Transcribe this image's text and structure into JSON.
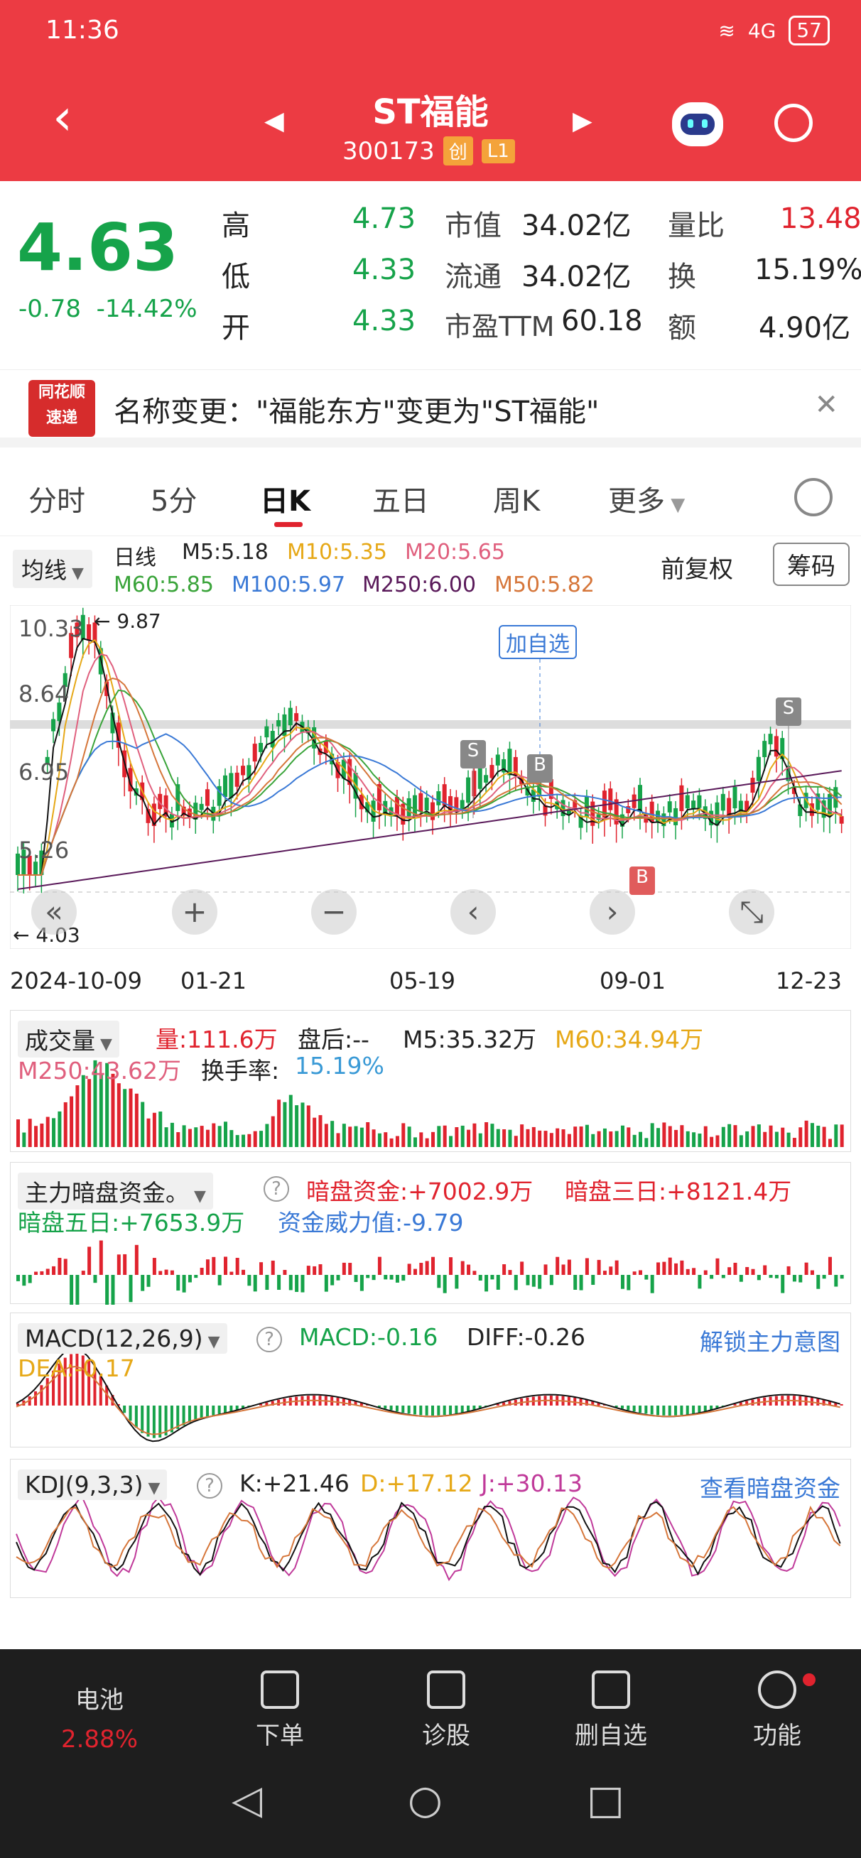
{
  "status": {
    "time": "11:36",
    "battery": "57",
    "net": "4G"
  },
  "header": {
    "title": "ST福能",
    "code": "300173",
    "badge1": "创",
    "badge2": "L1"
  },
  "quote": {
    "price": "4.63",
    "change": "-0.78",
    "pct": "-14.42%",
    "rows": [
      {
        "k1": "高",
        "v1": "4.73",
        "k2": "市值",
        "v2": "34.02亿",
        "k3": "量比",
        "v3": "13.48"
      },
      {
        "k1": "低",
        "v1": "4.33",
        "k2": "流通",
        "v2": "34.02亿",
        "k3": "换",
        "v3": "15.19%"
      },
      {
        "k1": "开",
        "v1": "4.33",
        "k2": "市盈TTM",
        "v2": "60.18",
        "k3": "额",
        "v3": "4.90亿"
      }
    ]
  },
  "news": {
    "logo1": "同花顺",
    "logo2": "速递",
    "text": "名称变更：\"福能东方\"变更为\"ST福能\""
  },
  "tabs": [
    "分时",
    "5分",
    "日K",
    "五日",
    "周K",
    "更多"
  ],
  "ma": {
    "select": "均线",
    "line": "日线",
    "m5": "M5:5.18",
    "m10": "M10:5.35",
    "m20": "M20:5.65",
    "m60": "M60:5.85",
    "m100": "M100:5.97",
    "m250": "M250:6.00",
    "m50": "M50:5.82",
    "fuquan": "前复权",
    "chouma": "筹码"
  },
  "colors": {
    "m5": "#111111",
    "m10": "#e6a817",
    "m20": "#e0607e",
    "m60": "#3aa43a",
    "m100": "#3a79d6",
    "m250": "#5a1a5a",
    "m50": "#d6763a",
    "up": "#e0232e",
    "down": "#16a34a"
  },
  "kchart": {
    "yticks": [
      "10.33",
      "8.64",
      "6.95",
      "5.26"
    ],
    "max_label": "9.87",
    "min_label": "4.03",
    "addlabel": "加自选",
    "sig_s": "S",
    "sig_b": "B",
    "xticks": [
      "2024-10-09",
      "01-21",
      "05-19",
      "09-01",
      "12-23"
    ]
  },
  "vol": {
    "select": "成交量",
    "v": "量:111.6万",
    "after": "盘后:--",
    "m5": "M5:35.32万",
    "m60": "M60:34.94万",
    "m250": "M250:43.62万",
    "turn": "换手率:",
    "turnv": "15.19%"
  },
  "dark": {
    "select": "主力暗盘资金。",
    "a": "暗盘资金:+7002.9万",
    "b": "暗盘三日:+8121.4万",
    "c": "暗盘五日:+7653.9万",
    "d": "资金威力值:-9.79"
  },
  "macd": {
    "select": "MACD(12,26,9)",
    "macd": "MACD:-0.16",
    "diff": "DIFF:-0.26",
    "dea": "DEA:-0.17",
    "link": "解锁主力意图"
  },
  "kdj": {
    "select": "KDJ(9,3,3)",
    "k": "K:+21.46",
    "d": "D:+17.12",
    "j": "J:+30.13",
    "link": "查看暗盘资金"
  },
  "bottom": {
    "b0": "电池",
    "b0v": "2.88%",
    "b1": "下单",
    "b2": "诊股",
    "b3": "删自选",
    "b4": "功能"
  }
}
